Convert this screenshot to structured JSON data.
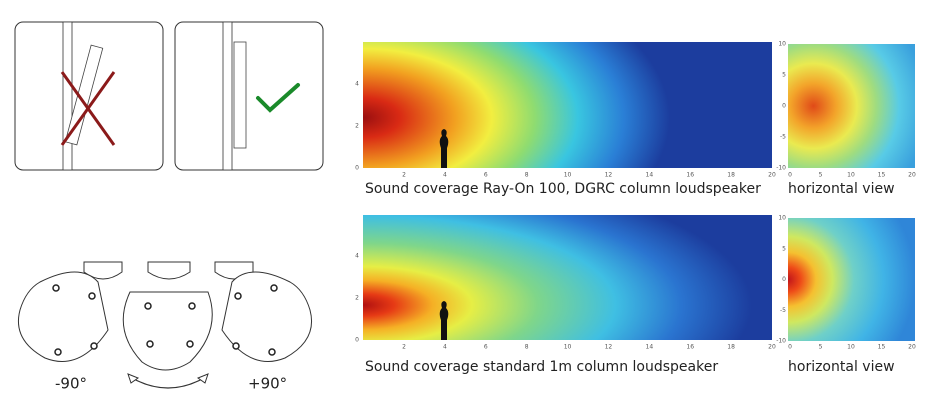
{
  "rotation": {
    "left_label": "-90°",
    "right_label": "+90°"
  },
  "panels": [
    {
      "caption": "Sound coverage Ray-On 100, DGRC column loudspeaker",
      "side_caption": "horizontal view",
      "main_plot": {
        "xticks": [
          2,
          4,
          6,
          8,
          10,
          12,
          14,
          16,
          18,
          20
        ],
        "yticks": [
          0,
          2,
          4
        ]
      },
      "side_plot": {
        "xticks": [
          0,
          5,
          10,
          15,
          20
        ],
        "yticks": [
          10,
          5,
          0,
          -5,
          -10
        ]
      }
    },
    {
      "caption": "Sound coverage standard 1m column loudspeaker",
      "side_caption": "horizontal view",
      "main_plot": {
        "xticks": [
          2,
          4,
          6,
          8,
          10,
          12,
          14,
          16,
          18,
          20
        ],
        "yticks": [
          0,
          2,
          4
        ]
      },
      "side_plot": {
        "xticks": [
          0,
          5,
          10,
          15,
          20
        ],
        "yticks": [
          10,
          5,
          0,
          -5,
          -10
        ]
      }
    }
  ]
}
